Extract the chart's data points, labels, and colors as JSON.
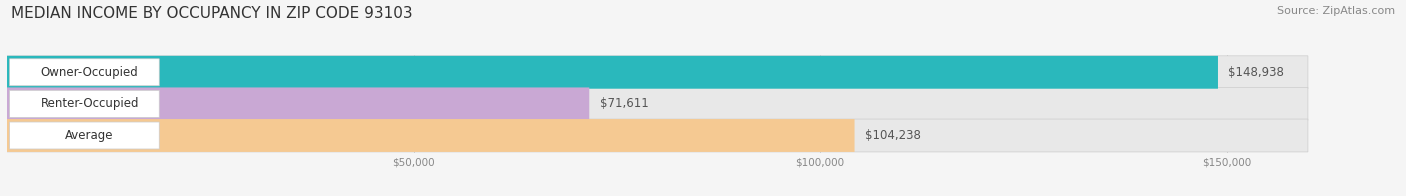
{
  "title": "MEDIAN INCOME BY OCCUPANCY IN ZIP CODE 93103",
  "source": "Source: ZipAtlas.com",
  "categories": [
    "Owner-Occupied",
    "Renter-Occupied",
    "Average"
  ],
  "values": [
    148938,
    71611,
    104238
  ],
  "bar_colors": [
    "#2ab8bc",
    "#c9a8d4",
    "#f5c992"
  ],
  "value_labels": [
    "$148,938",
    "$71,611",
    "$104,238"
  ],
  "xlim_max": 160000,
  "xticks": [
    50000,
    100000,
    150000
  ],
  "xtick_labels": [
    "$50,000",
    "$100,000",
    "$150,000"
  ],
  "background_color": "#f5f5f5",
  "bar_background_color": "#e8e8e8",
  "title_fontsize": 11,
  "source_fontsize": 8,
  "label_fontsize": 8.5,
  "value_fontsize": 8.5,
  "bar_height": 0.52
}
